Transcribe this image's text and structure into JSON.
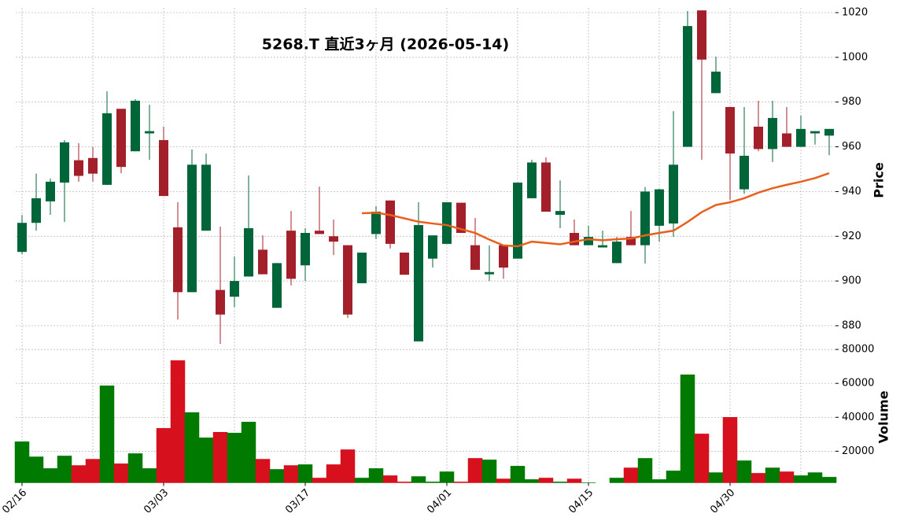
{
  "chart_data": {
    "type": "candlestick",
    "title": "5268.T  直近3ヶ月  (2026-05-14)",
    "y_label": "Price",
    "y2_label": "Volume",
    "categories": [
      "02/16",
      null,
      null,
      null,
      null,
      null,
      null,
      null,
      null,
      null,
      "03/03",
      null,
      null,
      null,
      null,
      null,
      null,
      null,
      null,
      null,
      "03/17",
      null,
      null,
      null,
      null,
      null,
      null,
      null,
      null,
      null,
      "04/01",
      null,
      null,
      null,
      null,
      null,
      null,
      null,
      null,
      null,
      "04/15",
      null,
      null,
      null,
      null,
      null,
      null,
      null,
      null,
      null,
      "04/30",
      null,
      null,
      null,
      null,
      null,
      null,
      null
    ],
    "open": [
      913,
      926,
      935.6,
      944,
      954,
      955,
      943,
      977,
      958,
      966,
      963,
      924,
      895,
      922.5,
      896,
      893,
      902,
      914,
      888,
      922.5,
      907,
      922.5,
      920,
      916,
      899,
      921,
      936,
      912.7,
      873,
      910,
      916.6,
      935,
      916,
      903,
      916,
      910,
      937,
      953,
      929.6,
      921.5,
      916,
      915,
      908,
      919.7,
      916,
      924.7,
      925.7,
      960,
      1021,
      984,
      977.8,
      941,
      969,
      959,
      966,
      960,
      966,
      965
    ],
    "high": [
      929.5,
      948,
      945.8,
      963,
      961.6,
      960,
      984.8,
      976.7,
      981.3,
      978.8,
      969,
      935.2,
      958.8,
      957,
      924.3,
      911,
      947.2,
      920.4,
      908,
      931.3,
      923.6,
      942.2,
      927.5,
      916,
      912.7,
      933.5,
      936,
      912.7,
      935.2,
      920.4,
      935.2,
      935,
      928.2,
      915.9,
      916,
      944,
      954.2,
      955.3,
      945,
      927.5,
      924.7,
      922.5,
      919.7,
      931.3,
      942,
      941.2,
      976,
      1020.7,
      1021,
      1000.3,
      977.8,
      977.8,
      980.6,
      980.6,
      977.8,
      974,
      967,
      968
    ],
    "low": [
      912,
      922.5,
      929.6,
      926.4,
      944.4,
      944.4,
      943,
      948.2,
      958,
      954.2,
      938,
      882.8,
      895,
      922.5,
      871.9,
      888.4,
      902,
      903,
      888,
      898,
      900,
      921,
      911.6,
      883.5,
      899,
      918.7,
      914.5,
      902.8,
      873,
      906,
      916.6,
      921.5,
      905,
      900,
      901,
      910,
      937,
      931,
      923.6,
      916,
      916,
      915,
      908,
      916,
      907.8,
      917.6,
      919.7,
      960,
      954.2,
      984,
      936.3,
      939,
      958,
      953.2,
      960,
      960,
      961,
      956.3
    ],
    "close": [
      926,
      937,
      944.4,
      962,
      947,
      948,
      975,
      951,
      980.6,
      967,
      938,
      895,
      952,
      952,
      885,
      900,
      923.6,
      903,
      908,
      901,
      921.5,
      921,
      917.6,
      885,
      912.7,
      931,
      916.6,
      902.8,
      925,
      920.4,
      935.2,
      921.5,
      905,
      904,
      906,
      944,
      953,
      931,
      931.3,
      916,
      919.7,
      916,
      917.6,
      916,
      940,
      941,
      952,
      1014,
      999,
      993.6,
      957,
      956,
      959,
      972.9,
      960,
      968,
      967,
      968
    ],
    "ma": [
      null,
      null,
      null,
      null,
      null,
      null,
      null,
      null,
      null,
      null,
      null,
      null,
      null,
      null,
      null,
      null,
      null,
      null,
      null,
      null,
      null,
      null,
      null,
      null,
      930.3,
      930.5,
      929.5,
      928,
      926.5,
      925.7,
      925,
      923.2,
      921.5,
      918.5,
      915.9,
      915.5,
      917.6,
      917,
      916.4,
      917.6,
      918.7,
      918.2,
      918.7,
      919,
      920.4,
      921.5,
      922.5,
      926.4,
      930.8,
      934,
      935.2,
      937,
      939.5,
      941.5,
      943,
      944.4,
      946,
      948.2
    ],
    "volume": [
      25600,
      16700,
      9800,
      17200,
      11600,
      15300,
      58600,
      12600,
      18600,
      9800,
      33500,
      73500,
      42800,
      27900,
      31200,
      30700,
      37200,
      15300,
      9300,
      11600,
      12100,
      4200,
      12100,
      20900,
      4200,
      9800,
      5600,
      1900,
      5100,
      1900,
      7900,
      1900,
      15800,
      14900,
      3700,
      11200,
      3300,
      4200,
      1900,
      3700,
      1500,
      1400,
      4200,
      10200,
      15800,
      3300,
      8400,
      65100,
      30200,
      7400,
      40000,
      14400,
      7000,
      10200,
      7900,
      5600,
      7400,
      4700
    ],
    "up_color": "#00663a",
    "down_color": "#a3202a",
    "volume_up_color": "#007a00",
    "volume_down_color": "#d7101d",
    "ma_color": "#e8601c",
    "ylim": [
      874,
      1021
    ],
    "yticks": [
      880,
      900,
      920,
      940,
      960,
      980,
      1000,
      1020
    ],
    "y2lim": [
      1400,
      81900
    ],
    "y2ticks": [
      20000,
      40000,
      60000,
      80000
    ],
    "grid": true
  }
}
